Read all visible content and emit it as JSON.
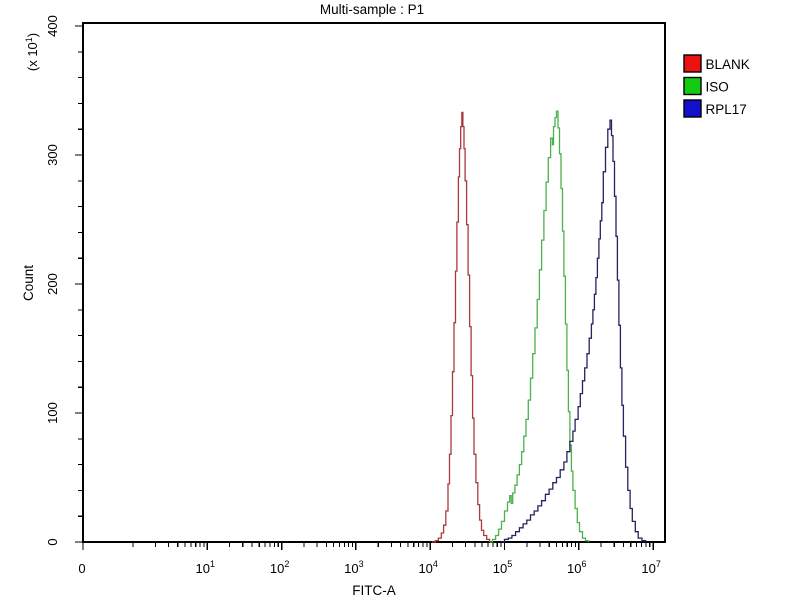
{
  "title": "Multi-sample : P1",
  "colors": {
    "background": "#ffffff",
    "plot_background": "#ffffff",
    "axis": "#000000",
    "text": "#000000"
  },
  "chart_data": {
    "type": "line",
    "subtype": "flow-cytometry-histogram-overlay",
    "title": "Multi-sample : P1",
    "xlabel": "FITC-A",
    "ylabel": "Count",
    "y_unit_prefix": "(x 10",
    "y_unit_exp": "1",
    "y_unit_suffix": ")",
    "x_scale": "log",
    "x_origin_label": "0",
    "x_ticks": [
      {
        "base": "10",
        "exp": "1"
      },
      {
        "base": "10",
        "exp": "2"
      },
      {
        "base": "10",
        "exp": "3"
      },
      {
        "base": "10",
        "exp": "4"
      },
      {
        "base": "10",
        "exp": "5"
      },
      {
        "base": "10",
        "exp": "6"
      },
      {
        "base": "10",
        "exp": "7"
      }
    ],
    "y_ticks": [
      0,
      100,
      200,
      300,
      400
    ],
    "y_minor_step": 20,
    "ylim": [
      0,
      400
    ],
    "xlim_log10": [
      0,
      7
    ],
    "grid": false,
    "legend_position": "top-right-outside",
    "series": [
      {
        "name": "BLANK",
        "curve_color": "#a93a3c",
        "swatch_color": "#ee1111",
        "peak_log10_x": 4.42,
        "peak_count": 333,
        "points_log10x_count": [
          [
            4.02,
            0
          ],
          [
            4.07,
            1
          ],
          [
            4.11,
            3
          ],
          [
            4.15,
            7
          ],
          [
            4.18,
            13
          ],
          [
            4.21,
            24
          ],
          [
            4.24,
            45
          ],
          [
            4.26,
            68
          ],
          [
            4.28,
            98
          ],
          [
            4.3,
            132
          ],
          [
            4.32,
            170
          ],
          [
            4.34,
            210
          ],
          [
            4.36,
            248
          ],
          [
            4.38,
            283
          ],
          [
            4.395,
            305
          ],
          [
            4.41,
            322
          ],
          [
            4.425,
            333
          ],
          [
            4.44,
            322
          ],
          [
            4.455,
            305
          ],
          [
            4.47,
            280
          ],
          [
            4.49,
            246
          ],
          [
            4.51,
            207
          ],
          [
            4.53,
            167
          ],
          [
            4.55,
            129
          ],
          [
            4.57,
            96
          ],
          [
            4.59,
            68
          ],
          [
            4.615,
            46
          ],
          [
            4.64,
            29
          ],
          [
            4.665,
            17
          ],
          [
            4.69,
            9
          ],
          [
            4.72,
            5
          ],
          [
            4.76,
            2
          ],
          [
            4.8,
            0
          ]
        ]
      },
      {
        "name": "ISO",
        "curve_color": "#4cb24c",
        "swatch_color": "#11cc11",
        "peak_log10_x": 5.7,
        "peak_count": 334,
        "points_log10x_count": [
          [
            4.8,
            0
          ],
          [
            4.84,
            2
          ],
          [
            4.88,
            5
          ],
          [
            4.92,
            10
          ],
          [
            4.96,
            16
          ],
          [
            5.0,
            24
          ],
          [
            5.04,
            31
          ],
          [
            5.07,
            36
          ],
          [
            5.09,
            30
          ],
          [
            5.11,
            38
          ],
          [
            5.14,
            44
          ],
          [
            5.17,
            52
          ],
          [
            5.2,
            60
          ],
          [
            5.23,
            70
          ],
          [
            5.26,
            82
          ],
          [
            5.29,
            95
          ],
          [
            5.32,
            110
          ],
          [
            5.35,
            127
          ],
          [
            5.38,
            146
          ],
          [
            5.41,
            166
          ],
          [
            5.44,
            188
          ],
          [
            5.47,
            211
          ],
          [
            5.5,
            234
          ],
          [
            5.53,
            257
          ],
          [
            5.56,
            279
          ],
          [
            5.59,
            298
          ],
          [
            5.62,
            313
          ],
          [
            5.645,
            308
          ],
          [
            5.66,
            322
          ],
          [
            5.68,
            329
          ],
          [
            5.7,
            334
          ],
          [
            5.72,
            321
          ],
          [
            5.74,
            301
          ],
          [
            5.76,
            274
          ],
          [
            5.78,
            241
          ],
          [
            5.8,
            206
          ],
          [
            5.82,
            169
          ],
          [
            5.84,
            133
          ],
          [
            5.86,
            101
          ],
          [
            5.88,
            75
          ],
          [
            5.9,
            55
          ],
          [
            5.92,
            40
          ],
          [
            5.95,
            26
          ],
          [
            5.98,
            15
          ],
          [
            6.01,
            8
          ],
          [
            6.05,
            3
          ],
          [
            6.09,
            1
          ],
          [
            6.13,
            0
          ]
        ]
      },
      {
        "name": "RPL17",
        "curve_color": "#23235f",
        "swatch_color": "#1111cc",
        "peak_log10_x": 6.42,
        "peak_count": 327,
        "points_log10x_count": [
          [
            4.95,
            0
          ],
          [
            5.0,
            2
          ],
          [
            5.05,
            3
          ],
          [
            5.1,
            5
          ],
          [
            5.15,
            8
          ],
          [
            5.2,
            11
          ],
          [
            5.25,
            14
          ],
          [
            5.3,
            17
          ],
          [
            5.35,
            21
          ],
          [
            5.4,
            24
          ],
          [
            5.45,
            28
          ],
          [
            5.5,
            32
          ],
          [
            5.55,
            37
          ],
          [
            5.6,
            41
          ],
          [
            5.65,
            46
          ],
          [
            5.7,
            50
          ],
          [
            5.75,
            56
          ],
          [
            5.8,
            62
          ],
          [
            5.84,
            70
          ],
          [
            5.88,
            78
          ],
          [
            5.92,
            86
          ],
          [
            5.95,
            95
          ],
          [
            5.99,
            105
          ],
          [
            6.02,
            115
          ],
          [
            6.05,
            125
          ],
          [
            6.08,
            135
          ],
          [
            6.11,
            146
          ],
          [
            6.14,
            158
          ],
          [
            6.17,
            169
          ],
          [
            6.19,
            180
          ],
          [
            6.21,
            192
          ],
          [
            6.23,
            205
          ],
          [
            6.25,
            220
          ],
          [
            6.27,
            235
          ],
          [
            6.29,
            249
          ],
          [
            6.31,
            263
          ],
          [
            6.33,
            287
          ],
          [
            6.36,
            306
          ],
          [
            6.39,
            320
          ],
          [
            6.42,
            327
          ],
          [
            6.44,
            315
          ],
          [
            6.46,
            295
          ],
          [
            6.48,
            268
          ],
          [
            6.5,
            237
          ],
          [
            6.52,
            203
          ],
          [
            6.54,
            168
          ],
          [
            6.56,
            135
          ],
          [
            6.58,
            106
          ],
          [
            6.6,
            82
          ],
          [
            6.63,
            58
          ],
          [
            6.66,
            40
          ],
          [
            6.69,
            26
          ],
          [
            6.72,
            16
          ],
          [
            6.76,
            8
          ],
          [
            6.8,
            3
          ],
          [
            6.85,
            1
          ],
          [
            6.9,
            0
          ]
        ]
      }
    ]
  }
}
